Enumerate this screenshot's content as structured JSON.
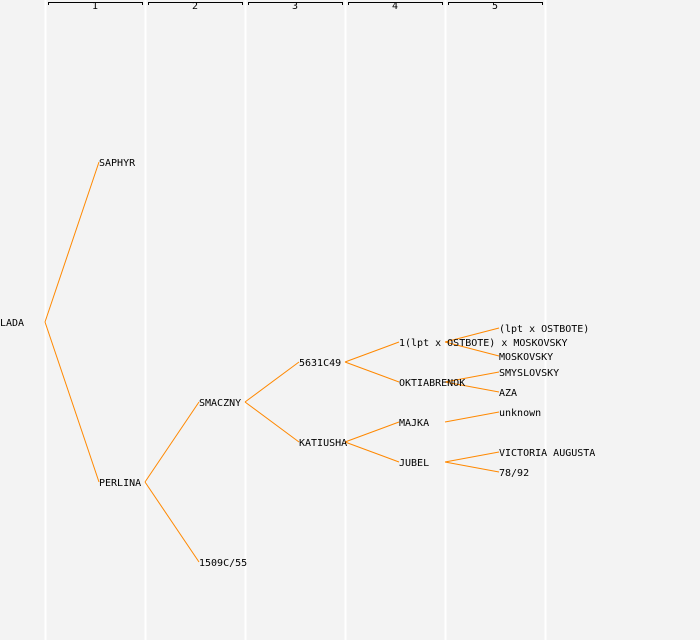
{
  "generations": [
    "1",
    "2",
    "3",
    "4",
    "5"
  ],
  "colors": {
    "background": "#f3f3f3",
    "line": "#ff8800",
    "separator": "#ffffff",
    "text": "#000000"
  },
  "tree": {
    "name": "LADA",
    "parents": [
      {
        "name": "SAPHYR",
        "parents": []
      },
      {
        "name": "PERLINA",
        "parents": [
          {
            "name": "SMACZNY",
            "parents": [
              {
                "name": "5631C49",
                "parents": [
                  {
                    "name": "1(lpt x OSTBOTE) x MOSKOVSKY",
                    "parents": [
                      {
                        "name": "(lpt x OSTBOTE)",
                        "parents": []
                      },
                      {
                        "name": "MOSKOVSKY",
                        "parents": []
                      }
                    ]
                  },
                  {
                    "name": "OKTIABRENOK",
                    "parents": [
                      {
                        "name": "SMYSLOVSKY",
                        "parents": []
                      },
                      {
                        "name": "AZA",
                        "parents": []
                      }
                    ]
                  }
                ]
              },
              {
                "name": "KATIUSHA",
                "parents": [
                  {
                    "name": "MAJKA",
                    "parents": [
                      {
                        "name": "unknown",
                        "parents": []
                      }
                    ]
                  },
                  {
                    "name": "JUBEL",
                    "parents": [
                      {
                        "name": "VICTORIA AUGUSTA",
                        "parents": []
                      },
                      {
                        "name": "78/92",
                        "parents": []
                      }
                    ]
                  }
                ]
              }
            ]
          },
          {
            "name": "1509C/55",
            "parents": []
          }
        ]
      }
    ]
  }
}
